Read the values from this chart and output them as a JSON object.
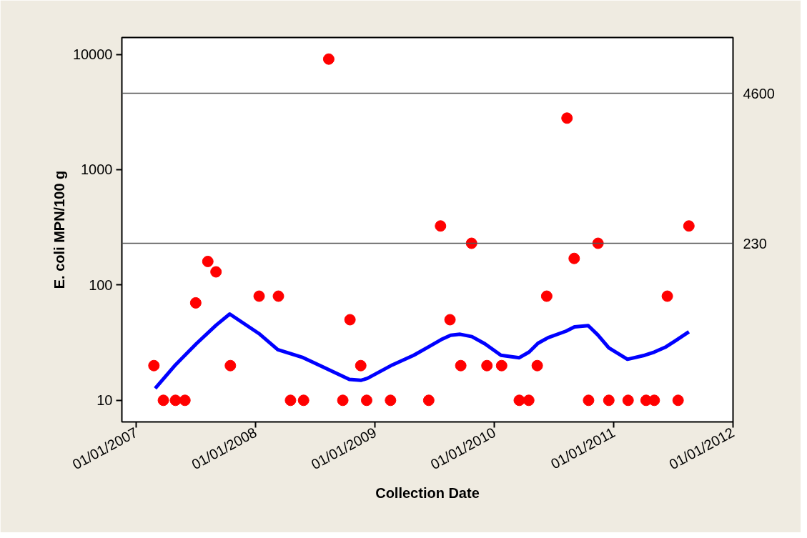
{
  "chart_data": {
    "type": "scatter",
    "xlabel": "Collection Date",
    "ylabel": "E. coli MPN/100 g",
    "log": "y",
    "grid": false,
    "xlim": [
      "2006-11-18",
      "2012-01-01"
    ],
    "ylim": [
      6.5,
      14000
    ],
    "xticks": [
      {
        "value": "2007-01-01",
        "label": "01/01/2007"
      },
      {
        "value": "2008-01-01",
        "label": "01/01/2008"
      },
      {
        "value": "2009-01-01",
        "label": "01/01/2009"
      },
      {
        "value": "2010-01-01",
        "label": "01/01/2010"
      },
      {
        "value": "2011-01-01",
        "label": "01/01/2011"
      },
      {
        "value": "2012-01-01",
        "label": "01/01/2012"
      }
    ],
    "yticks": [
      10,
      100,
      1000,
      10000
    ],
    "ref_lines": [
      {
        "axis": "y",
        "value": 4600,
        "label": "4600",
        "color": "#555555"
      },
      {
        "axis": "y",
        "value": 230,
        "label": "230",
        "color": "#555555"
      }
    ],
    "series": [
      {
        "marker": "circle",
        "color": "#ff0000",
        "x": [
          "2007-02-24",
          "2007-03-25",
          "2007-05-01",
          "2007-05-30",
          "2007-07-02",
          "2007-08-08",
          "2007-09-02",
          "2007-10-16",
          "2008-01-12",
          "2008-03-11",
          "2008-04-17",
          "2008-05-27",
          "2008-08-12",
          "2008-09-24",
          "2008-10-16",
          "2008-11-18",
          "2008-12-06",
          "2009-02-17",
          "2009-06-14",
          "2009-07-20",
          "2009-08-18",
          "2009-09-20",
          "2009-10-23",
          "2009-12-09",
          "2010-01-23",
          "2010-03-18",
          "2010-04-16",
          "2010-05-12",
          "2010-06-10",
          "2010-08-11",
          "2010-09-02",
          "2010-10-16",
          "2010-11-14",
          "2010-12-17",
          "2011-02-14",
          "2011-04-10",
          "2011-05-05",
          "2011-06-14",
          "2011-07-17",
          "2011-08-19"
        ],
        "values": [
          20,
          10,
          10,
          10,
          70,
          160,
          130,
          20,
          80,
          80,
          10,
          10,
          9100,
          10,
          50,
          20,
          10,
          10,
          10,
          325,
          50,
          20,
          230,
          20,
          20,
          10,
          10,
          20,
          80,
          2800,
          170,
          10,
          230,
          10,
          10,
          10,
          10,
          80,
          10,
          325
        ]
      },
      {
        "type": "line",
        "line_style": "solid",
        "marker": "none",
        "color": "#0000ff",
        "x": [
          "2007-02-28",
          "2007-05-01",
          "2007-07-04",
          "2007-09-03",
          "2007-10-14",
          "2008-01-11",
          "2008-03-09",
          "2008-05-25",
          "2008-10-14",
          "2008-11-18",
          "2008-12-08",
          "2009-02-23",
          "2009-04-29",
          "2009-06-12",
          "2009-07-22",
          "2009-08-20",
          "2009-09-18",
          "2009-10-24",
          "2009-12-03",
          "2010-01-21",
          "2010-03-18",
          "2010-04-17",
          "2010-05-14",
          "2010-06-14",
          "2010-08-08",
          "2010-09-03",
          "2010-10-15",
          "2010-11-13",
          "2010-12-17",
          "2011-02-12",
          "2011-04-06",
          "2011-05-05",
          "2011-06-10",
          "2011-07-09",
          "2011-08-19"
        ],
        "values": [
          12.7,
          20.3,
          31,
          45,
          56,
          38,
          27.5,
          23.5,
          15.2,
          14.9,
          15.5,
          20.3,
          24.6,
          28.9,
          33.6,
          36.7,
          37.4,
          35.7,
          30.9,
          24.6,
          23.4,
          26.2,
          31.2,
          34.9,
          39.8,
          43.4,
          44.4,
          37,
          28.5,
          22.7,
          24.6,
          26.2,
          29.1,
          32.9,
          39.3
        ]
      }
    ]
  }
}
